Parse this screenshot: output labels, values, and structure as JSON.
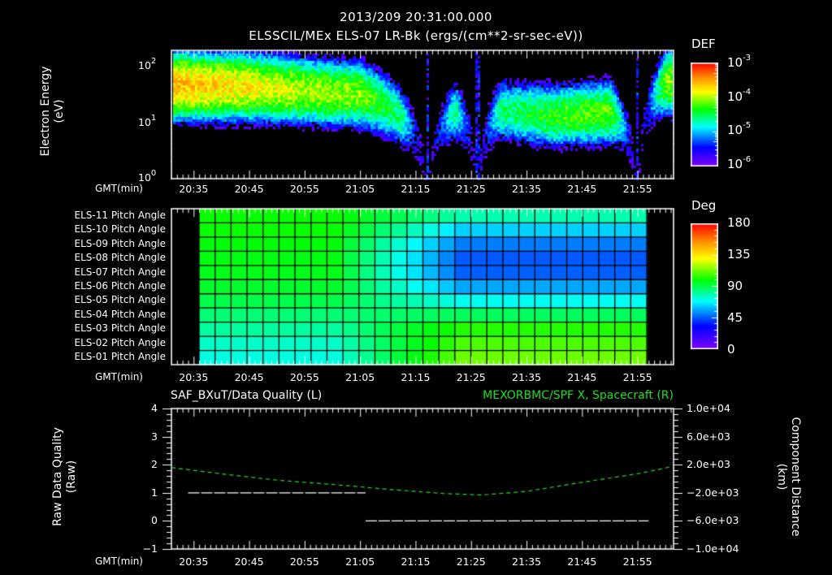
{
  "header": {
    "timestamp": "2013/209 20:31:00.000",
    "panel1_title": "ELSSCIL/MEx ELS-07 LR-Bk  (ergs/(cm**2-sr-sec-eV))"
  },
  "axis": {
    "x_label": "GMT(min)",
    "x_ticks": [
      "20:35",
      "20:45",
      "20:55",
      "21:05",
      "21:15",
      "21:25",
      "21:35",
      "21:45",
      "21:55"
    ]
  },
  "panel1": {
    "ylabel_line1": "Electron Energy",
    "ylabel_line2": "(eV)",
    "y_ticks": [
      {
        "base": "10",
        "exp": "2"
      },
      {
        "base": "10",
        "exp": "1"
      },
      {
        "base": "10",
        "exp": "0"
      }
    ],
    "colorbar": {
      "title": "DEF",
      "labels": [
        {
          "base": "10",
          "exp": "-3"
        },
        {
          "base": "10",
          "exp": "-4"
        },
        {
          "base": "10",
          "exp": "-5"
        },
        {
          "base": "10",
          "exp": "-6"
        }
      ]
    }
  },
  "panel2": {
    "row_labels": [
      "ELS-11 Pitch Angle",
      "ELS-10 Pitch Angle",
      "ELS-09 Pitch Angle",
      "ELS-08 Pitch Angle",
      "ELS-07 Pitch Angle",
      "ELS-06 Pitch Angle",
      "ELS-05 Pitch Angle",
      "ELS-04 Pitch Angle",
      "ELS-03 Pitch Angle",
      "ELS-02 Pitch Angle",
      "ELS-01 Pitch Angle"
    ],
    "colorbar": {
      "title": "Deg",
      "labels": [
        "180",
        "135",
        "90",
        "45",
        "0"
      ]
    }
  },
  "panel3": {
    "left_title": "SAF_BXuT/Data Quality (L)",
    "right_title": "MEXORBMC/SPF X, Spacecraft (R)",
    "left_ylabel_line1": "Raw Data Quality",
    "left_ylabel_line2": "(Raw)",
    "left_y_ticks": [
      "4",
      "3",
      "2",
      "1",
      "0",
      "−1"
    ],
    "right_ylabel_line1": "Component Distance",
    "right_ylabel_line2": "(km)",
    "right_y_ticks": [
      "1.0e+04",
      "6.0e+03",
      "2.0e+03",
      "−2.0e+03",
      "−6.0e+03",
      "−1.0e+04"
    ],
    "colors": {
      "left_series": "#ffffff",
      "right_series": "#22dd22",
      "right_title": "#22dd22"
    }
  },
  "chart_data": [
    {
      "type": "heatmap",
      "title": "ELSSCIL/MEx ELS-07 LR-Bk (ergs/(cm**2-sr-sec-eV))",
      "subtitle": "2013/209 20:31:00.000",
      "xlabel": "GMT(min)",
      "ylabel": "Electron Energy (eV)",
      "y_scale": "log",
      "ylim": [
        1,
        150
      ],
      "x_range": [
        "20:31",
        "22:01"
      ],
      "colorbar": {
        "label": "DEF",
        "scale": "log",
        "range": [
          1e-06,
          0.001
        ]
      },
      "description_band": [
        {
          "t": "20:31",
          "peak_eV": 40,
          "level": -3.6
        },
        {
          "t": "20:45",
          "peak_eV": 38,
          "level": -3.8
        },
        {
          "t": "20:55",
          "peak_eV": 32,
          "level": -4.0
        },
        {
          "t": "21:05",
          "peak_eV": 28,
          "level": -4.1
        },
        {
          "t": "21:12",
          "peak_eV": 12,
          "level": -4.6
        },
        {
          "t": "21:17",
          "peak_eV": 0,
          "level": -6.0
        },
        {
          "t": "21:22",
          "peak_eV": 15,
          "level": -4.6
        },
        {
          "t": "21:26",
          "peak_eV": 0,
          "level": -6.0
        },
        {
          "t": "21:30",
          "peak_eV": 15,
          "level": -4.6
        },
        {
          "t": "21:40",
          "peak_eV": 12,
          "level": -4.3
        },
        {
          "t": "21:50",
          "peak_eV": 14,
          "level": -4.2
        },
        {
          "t": "21:55",
          "peak_eV": 0,
          "level": -6.0
        },
        {
          "t": "22:00",
          "peak_eV": 45,
          "level": -4.1
        }
      ]
    },
    {
      "type": "heatmap",
      "title": "Pitch Angle",
      "xlabel": "GMT(min)",
      "rows": [
        "ELS-11",
        "ELS-10",
        "ELS-09",
        "ELS-08",
        "ELS-07",
        "ELS-06",
        "ELS-05",
        "ELS-04",
        "ELS-03",
        "ELS-02",
        "ELS-01"
      ],
      "colorbar": {
        "label": "Deg",
        "range": [
          0,
          180
        ],
        "ticks": [
          0,
          45,
          90,
          135,
          180
        ]
      },
      "x_range_data": [
        "20:34",
        "21:57"
      ],
      "columns_times": [
        "20:34",
        "20:37",
        "20:40",
        "20:43",
        "20:46",
        "20:49",
        "20:52",
        "20:55",
        "20:58",
        "21:01",
        "21:04",
        "21:07",
        "21:10",
        "21:13",
        "21:16",
        "21:19",
        "21:22",
        "21:25",
        "21:28",
        "21:31",
        "21:34",
        "21:37",
        "21:40",
        "21:43",
        "21:46",
        "21:49",
        "21:52",
        "21:55"
      ],
      "values_early": [
        100,
        100,
        98,
        97,
        96,
        94,
        90,
        85,
        80,
        75,
        72
      ],
      "values_late": [
        78,
        62,
        50,
        45,
        46,
        56,
        70,
        88,
        103,
        108,
        112
      ]
    },
    {
      "type": "line",
      "title_left": "SAF_BXuT/Data Quality (L)",
      "title_right": "MEXORBMC/SPF X, Spacecraft (R)",
      "xlabel": "GMT(min)",
      "ylabel_left": "Raw Data Quality (Raw)",
      "ylabel_right": "Component Distance (km)",
      "ylim_left": [
        -1,
        4
      ],
      "ylim_right": [
        -10000,
        10000
      ],
      "series": [
        {
          "name": "Data Quality",
          "axis": "left",
          "color": "#ffffff",
          "x": [
            "20:34",
            "21:06",
            "21:06",
            "21:57"
          ],
          "values": [
            1,
            1,
            0,
            0
          ]
        },
        {
          "name": "SPF X Spacecraft",
          "axis": "right",
          "color": "#22dd22",
          "x": [
            "20:31",
            "20:40",
            "20:50",
            "21:00",
            "21:10",
            "21:20",
            "21:27",
            "21:35",
            "21:45",
            "21:55",
            "22:01"
          ],
          "values": [
            1600,
            700,
            -200,
            -800,
            -1500,
            -2100,
            -2300,
            -1800,
            -500,
            700,
            1700
          ]
        }
      ]
    }
  ]
}
